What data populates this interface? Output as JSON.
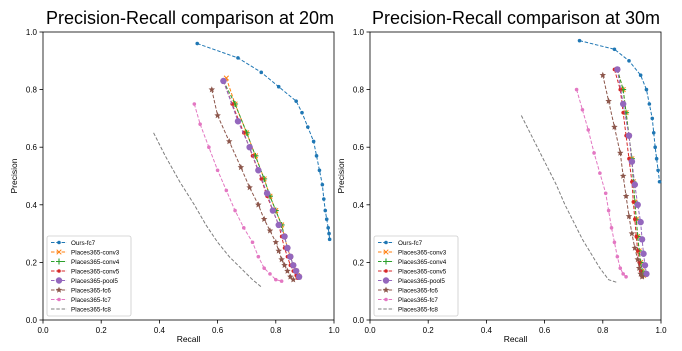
{
  "chart_data": [
    {
      "type": "line",
      "title": "Precision-Recall comparison at 20m",
      "xlabel": "Recall",
      "ylabel": "Precision",
      "xlim": [
        0,
        1
      ],
      "ylim": [
        0,
        1
      ],
      "xticks": [
        "0.0",
        "0.2",
        "0.4",
        "0.6",
        "0.8",
        "1.0"
      ],
      "yticks": [
        "0.0",
        "0.2",
        "0.4",
        "0.6",
        "0.8",
        "1.0"
      ],
      "legend_position": "lower-left",
      "grid": false,
      "series": [
        {
          "name": "Ours-fc7",
          "color": "#1f77b4",
          "marker": "point",
          "dash": "dashed",
          "points": [
            [
              0.53,
              0.96
            ],
            [
              0.67,
              0.91
            ],
            [
              0.75,
              0.86
            ],
            [
              0.81,
              0.81
            ],
            [
              0.87,
              0.76
            ],
            [
              0.89,
              0.72
            ],
            [
              0.91,
              0.67
            ],
            [
              0.93,
              0.62
            ],
            [
              0.94,
              0.57
            ],
            [
              0.95,
              0.52
            ],
            [
              0.96,
              0.47
            ],
            [
              0.965,
              0.42
            ],
            [
              0.97,
              0.38
            ],
            [
              0.975,
              0.35
            ],
            [
              0.98,
              0.32
            ],
            [
              0.983,
              0.3
            ],
            [
              0.985,
              0.28
            ]
          ]
        },
        {
          "name": "Places365-conv3",
          "color": "#ff7f0e",
          "marker": "x",
          "dash": "dashed",
          "points": [
            [
              0.63,
              0.84
            ],
            [
              0.66,
              0.75
            ],
            [
              0.7,
              0.65
            ],
            [
              0.73,
              0.57
            ],
            [
              0.76,
              0.49
            ],
            [
              0.78,
              0.43
            ],
            [
              0.8,
              0.38
            ],
            [
              0.82,
              0.33
            ],
            [
              0.83,
              0.29
            ],
            [
              0.84,
              0.25
            ],
            [
              0.85,
              0.22
            ],
            [
              0.86,
              0.19
            ],
            [
              0.87,
              0.17
            ],
            [
              0.875,
              0.155
            ],
            [
              0.88,
              0.15
            ]
          ]
        },
        {
          "name": "Places365-conv4",
          "color": "#2ca02c",
          "marker": "plus",
          "dash": "dashed",
          "points": [
            [
              0.62,
              0.83
            ],
            [
              0.66,
              0.75
            ],
            [
              0.7,
              0.65
            ],
            [
              0.73,
              0.57
            ],
            [
              0.76,
              0.49
            ],
            [
              0.78,
              0.43
            ],
            [
              0.8,
              0.38
            ],
            [
              0.82,
              0.33
            ],
            [
              0.83,
              0.29
            ],
            [
              0.84,
              0.25
            ],
            [
              0.85,
              0.22
            ],
            [
              0.86,
              0.19
            ],
            [
              0.87,
              0.17
            ],
            [
              0.875,
              0.155
            ],
            [
              0.88,
              0.15
            ]
          ]
        },
        {
          "name": "Places365-conv5",
          "color": "#d62728",
          "marker": "point",
          "dash": "dashed",
          "points": [
            [
              0.62,
              0.83
            ],
            [
              0.65,
              0.75
            ],
            [
              0.69,
              0.65
            ],
            [
              0.72,
              0.57
            ],
            [
              0.75,
              0.49
            ],
            [
              0.77,
              0.43
            ],
            [
              0.79,
              0.38
            ],
            [
              0.81,
              0.33
            ],
            [
              0.82,
              0.29
            ],
            [
              0.83,
              0.25
            ],
            [
              0.84,
              0.22
            ],
            [
              0.85,
              0.19
            ],
            [
              0.86,
              0.17
            ],
            [
              0.87,
              0.155
            ],
            [
              0.875,
              0.145
            ]
          ]
        },
        {
          "name": "Places365-pool5",
          "color": "#9467bd",
          "marker": "circle",
          "dash": "dashed",
          "points": [
            [
              0.62,
              0.83
            ],
            [
              0.67,
              0.69
            ],
            [
              0.71,
              0.6
            ],
            [
              0.74,
              0.52
            ],
            [
              0.77,
              0.44
            ],
            [
              0.79,
              0.38
            ],
            [
              0.81,
              0.33
            ],
            [
              0.83,
              0.29
            ],
            [
              0.84,
              0.25
            ],
            [
              0.85,
              0.22
            ],
            [
              0.86,
              0.19
            ],
            [
              0.87,
              0.17
            ],
            [
              0.88,
              0.15
            ]
          ]
        },
        {
          "name": "Places365-fc6",
          "color": "#8c564b",
          "marker": "star",
          "dash": "dashed",
          "points": [
            [
              0.58,
              0.8
            ],
            [
              0.6,
              0.71
            ],
            [
              0.64,
              0.62
            ],
            [
              0.68,
              0.53
            ],
            [
              0.71,
              0.46
            ],
            [
              0.74,
              0.4
            ],
            [
              0.76,
              0.35
            ],
            [
              0.78,
              0.31
            ],
            [
              0.8,
              0.27
            ],
            [
              0.81,
              0.24
            ],
            [
              0.82,
              0.21
            ],
            [
              0.83,
              0.19
            ],
            [
              0.84,
              0.17
            ],
            [
              0.85,
              0.15
            ],
            [
              0.86,
              0.14
            ]
          ]
        },
        {
          "name": "Places365-fc7",
          "color": "#e377c2",
          "marker": "point",
          "dash": "dashed",
          "points": [
            [
              0.52,
              0.75
            ],
            [
              0.54,
              0.68
            ],
            [
              0.57,
              0.6
            ],
            [
              0.6,
              0.52
            ],
            [
              0.63,
              0.45
            ],
            [
              0.66,
              0.38
            ],
            [
              0.69,
              0.32
            ],
            [
              0.72,
              0.27
            ],
            [
              0.74,
              0.22
            ],
            [
              0.76,
              0.18
            ],
            [
              0.78,
              0.16
            ],
            [
              0.8,
              0.14
            ],
            [
              0.82,
              0.135
            ]
          ]
        },
        {
          "name": "Places365-fc8",
          "color": "#7f7f7f",
          "marker": "none",
          "dash": "dashed",
          "points": [
            [
              0.38,
              0.65
            ],
            [
              0.42,
              0.57
            ],
            [
              0.47,
              0.48
            ],
            [
              0.52,
              0.4
            ],
            [
              0.56,
              0.33
            ],
            [
              0.6,
              0.27
            ],
            [
              0.64,
              0.22
            ],
            [
              0.68,
              0.18
            ],
            [
              0.72,
              0.14
            ],
            [
              0.75,
              0.115
            ]
          ]
        }
      ]
    },
    {
      "type": "line",
      "title": "Precision-Recall comparison at 30m",
      "xlabel": "Recall",
      "ylabel": "Precision",
      "xlim": [
        0,
        1
      ],
      "ylim": [
        0,
        1
      ],
      "xticks": [
        "0.0",
        "0.2",
        "0.4",
        "0.6",
        "0.8",
        "1.0"
      ],
      "yticks": [
        "0.0",
        "0.2",
        "0.4",
        "0.6",
        "0.8",
        "1.0"
      ],
      "legend_position": "lower-left",
      "grid": false,
      "series": [
        {
          "name": "Ours-fc7",
          "color": "#1f77b4",
          "marker": "point",
          "dash": "dashed",
          "points": [
            [
              0.72,
              0.97
            ],
            [
              0.84,
              0.94
            ],
            [
              0.89,
              0.9
            ],
            [
              0.93,
              0.85
            ],
            [
              0.95,
              0.8
            ],
            [
              0.96,
              0.75
            ],
            [
              0.97,
              0.7
            ],
            [
              0.975,
              0.65
            ],
            [
              0.98,
              0.6
            ],
            [
              0.985,
              0.56
            ],
            [
              0.99,
              0.52
            ],
            [
              0.995,
              0.48
            ]
          ]
        },
        {
          "name": "Places365-conv3",
          "color": "#ff7f0e",
          "marker": "x",
          "dash": "dashed",
          "points": [
            [
              0.85,
              0.87
            ],
            [
              0.87,
              0.8
            ],
            [
              0.88,
              0.72
            ],
            [
              0.89,
              0.64
            ],
            [
              0.9,
              0.56
            ],
            [
              0.905,
              0.48
            ],
            [
              0.91,
              0.41
            ],
            [
              0.915,
              0.35
            ],
            [
              0.92,
              0.29
            ],
            [
              0.925,
              0.24
            ],
            [
              0.93,
              0.2
            ],
            [
              0.935,
              0.17
            ],
            [
              0.94,
              0.155
            ]
          ]
        },
        {
          "name": "Places365-conv4",
          "color": "#2ca02c",
          "marker": "plus",
          "dash": "dashed",
          "points": [
            [
              0.85,
              0.87
            ],
            [
              0.87,
              0.8
            ],
            [
              0.88,
              0.72
            ],
            [
              0.89,
              0.64
            ],
            [
              0.9,
              0.56
            ],
            [
              0.905,
              0.48
            ],
            [
              0.91,
              0.41
            ],
            [
              0.915,
              0.35
            ],
            [
              0.92,
              0.29
            ],
            [
              0.925,
              0.24
            ],
            [
              0.93,
              0.2
            ],
            [
              0.935,
              0.17
            ],
            [
              0.94,
              0.155
            ]
          ]
        },
        {
          "name": "Places365-conv5",
          "color": "#d62728",
          "marker": "point",
          "dash": "dashed",
          "points": [
            [
              0.84,
              0.87
            ],
            [
              0.86,
              0.8
            ],
            [
              0.87,
              0.72
            ],
            [
              0.88,
              0.64
            ],
            [
              0.89,
              0.56
            ],
            [
              0.9,
              0.48
            ],
            [
              0.905,
              0.41
            ],
            [
              0.91,
              0.35
            ],
            [
              0.915,
              0.29
            ],
            [
              0.92,
              0.24
            ],
            [
              0.925,
              0.2
            ],
            [
              0.93,
              0.17
            ],
            [
              0.935,
              0.15
            ]
          ]
        },
        {
          "name": "Places365-pool5",
          "color": "#9467bd",
          "marker": "circle",
          "dash": "dashed",
          "points": [
            [
              0.85,
              0.87
            ],
            [
              0.87,
              0.75
            ],
            [
              0.89,
              0.64
            ],
            [
              0.9,
              0.55
            ],
            [
              0.91,
              0.47
            ],
            [
              0.92,
              0.4
            ],
            [
              0.93,
              0.34
            ],
            [
              0.935,
              0.28
            ],
            [
              0.94,
              0.23
            ],
            [
              0.945,
              0.19
            ],
            [
              0.95,
              0.16
            ]
          ]
        },
        {
          "name": "Places365-fc6",
          "color": "#8c564b",
          "marker": "star",
          "dash": "dashed",
          "points": [
            [
              0.8,
              0.85
            ],
            [
              0.82,
              0.76
            ],
            [
              0.84,
              0.67
            ],
            [
              0.86,
              0.58
            ],
            [
              0.87,
              0.5
            ],
            [
              0.88,
              0.43
            ],
            [
              0.89,
              0.36
            ],
            [
              0.9,
              0.3
            ],
            [
              0.91,
              0.25
            ],
            [
              0.92,
              0.21
            ],
            [
              0.925,
              0.18
            ],
            [
              0.93,
              0.16
            ],
            [
              0.935,
              0.15
            ]
          ]
        },
        {
          "name": "Places365-fc7",
          "color": "#e377c2",
          "marker": "point",
          "dash": "dashed",
          "points": [
            [
              0.71,
              0.8
            ],
            [
              0.73,
              0.73
            ],
            [
              0.75,
              0.66
            ],
            [
              0.77,
              0.58
            ],
            [
              0.79,
              0.51
            ],
            [
              0.81,
              0.44
            ],
            [
              0.82,
              0.38
            ],
            [
              0.83,
              0.32
            ],
            [
              0.84,
              0.27
            ],
            [
              0.85,
              0.22
            ],
            [
              0.86,
              0.18
            ],
            [
              0.87,
              0.16
            ],
            [
              0.88,
              0.15
            ]
          ]
        },
        {
          "name": "Places365-fc8",
          "color": "#7f7f7f",
          "marker": "none",
          "dash": "dashed",
          "points": [
            [
              0.52,
              0.71
            ],
            [
              0.56,
              0.63
            ],
            [
              0.6,
              0.55
            ],
            [
              0.64,
              0.47
            ],
            [
              0.67,
              0.4
            ],
            [
              0.7,
              0.34
            ],
            [
              0.73,
              0.28
            ],
            [
              0.76,
              0.23
            ],
            [
              0.79,
              0.18
            ],
            [
              0.82,
              0.14
            ],
            [
              0.85,
              0.13
            ]
          ]
        }
      ]
    }
  ]
}
